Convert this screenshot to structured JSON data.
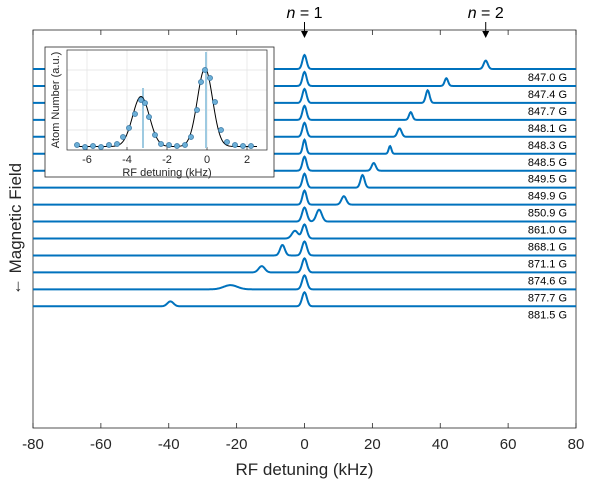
{
  "chart_data": {
    "type": "line",
    "xlabel": "RF detuning (kHz)",
    "ylabel": "← Magnetic Field",
    "xlim": [
      -80,
      80
    ],
    "xticks": [
      -80,
      -60,
      -40,
      -20,
      0,
      20,
      40,
      60,
      80
    ],
    "xtick_labels": [
      "-80",
      "-60",
      "-40",
      "-20",
      "0",
      "20",
      "40",
      "60",
      "80"
    ],
    "grid": false,
    "line_color": "#0072BD",
    "series": [
      {
        "name": "847.0 G",
        "peaks": [
          {
            "x": 0,
            "h": 1.0,
            "w": 0.6
          },
          {
            "x": 53.4,
            "h": 0.6,
            "w": 0.6
          }
        ]
      },
      {
        "name": "847.4 G",
        "peaks": [
          {
            "x": 0,
            "h": 1.0,
            "w": 0.6
          },
          {
            "x": 41.8,
            "h": 0.55,
            "w": 0.5
          }
        ]
      },
      {
        "name": "847.7 G",
        "peaks": [
          {
            "x": 0,
            "h": 1.0,
            "w": 0.6
          },
          {
            "x": 36.3,
            "h": 0.9,
            "w": 0.55
          }
        ]
      },
      {
        "name": "848.1 G",
        "peaks": [
          {
            "x": 0,
            "h": 1.0,
            "w": 0.6
          },
          {
            "x": 31.3,
            "h": 0.55,
            "w": 0.5
          }
        ]
      },
      {
        "name": "848.3 G",
        "peaks": [
          {
            "x": 0,
            "h": 1.0,
            "w": 0.6
          },
          {
            "x": 28.0,
            "h": 0.6,
            "w": 0.6
          }
        ]
      },
      {
        "name": "848.5 G",
        "peaks": [
          {
            "x": 0,
            "h": 1.0,
            "w": 0.5
          },
          {
            "x": 25.2,
            "h": 0.55,
            "w": 0.4
          }
        ]
      },
      {
        "name": "849.5 G",
        "peaks": [
          {
            "x": 0,
            "h": 1.0,
            "w": 0.6
          },
          {
            "x": 20.4,
            "h": 0.55,
            "w": 0.6
          }
        ]
      },
      {
        "name": "849.9 G",
        "peaks": [
          {
            "x": 0,
            "h": 1.0,
            "w": 0.6
          },
          {
            "x": 17.1,
            "h": 0.9,
            "w": 0.6
          }
        ]
      },
      {
        "name": "850.9 G",
        "peaks": [
          {
            "x": 0,
            "h": 1.0,
            "w": 0.6
          },
          {
            "x": 11.6,
            "h": 0.6,
            "w": 0.7
          }
        ]
      },
      {
        "name": "861.0 G",
        "peaks": [
          {
            "x": 0,
            "h": 1.0,
            "w": 0.7
          },
          {
            "x": 4.3,
            "h": 0.85,
            "w": 0.8
          }
        ]
      },
      {
        "name": "868.1 G",
        "peaks": [
          {
            "x": 0,
            "h": 1.0,
            "w": 0.7
          },
          {
            "x": -2.8,
            "h": 0.55,
            "w": 0.9
          }
        ]
      },
      {
        "name": "871.1 G",
        "peaks": [
          {
            "x": 0,
            "h": 1.0,
            "w": 0.7
          },
          {
            "x": -6.5,
            "h": 0.75,
            "w": 0.7
          }
        ]
      },
      {
        "name": "874.6 G",
        "peaks": [
          {
            "x": 0,
            "h": 1.0,
            "w": 0.7
          },
          {
            "x": -12.6,
            "h": 0.45,
            "w": 0.9
          }
        ]
      },
      {
        "name": "877.7 G",
        "peaks": [
          {
            "x": 0,
            "h": 1.0,
            "w": 0.7
          },
          {
            "x": -21.8,
            "h": 0.3,
            "w": 2.0
          }
        ]
      },
      {
        "name": "881.5 G",
        "peaks": [
          {
            "x": 0,
            "h": 1.0,
            "w": 0.7
          },
          {
            "x": -39.5,
            "h": 0.35,
            "w": 0.9
          }
        ]
      }
    ],
    "annotations": [
      {
        "label": "n = 1",
        "italic_part": "n",
        "rest": " = 1",
        "x": 0
      },
      {
        "label": "n = 2",
        "italic_part": "n",
        "rest": " = 2",
        "x": 53.4
      }
    ],
    "inset": {
      "type": "scatter",
      "xlabel": "RF detuning (kHz)",
      "ylabel": "Atom Number (a.u.)",
      "xlim": [
        -7,
        3
      ],
      "xticks": [
        -6,
        -4,
        -2,
        0,
        2
      ],
      "xtick_labels": [
        "-6",
        "-4",
        "-2",
        "0",
        "2"
      ],
      "grid": true,
      "marker_color": "#6BAED6",
      "line_color": "#000000",
      "points": [
        {
          "x": -6.5,
          "y": 0.05
        },
        {
          "x": -6.1,
          "y": 0.03
        },
        {
          "x": -5.7,
          "y": 0.04
        },
        {
          "x": -5.3,
          "y": 0.03
        },
        {
          "x": -4.9,
          "y": 0.05
        },
        {
          "x": -4.5,
          "y": 0.06
        },
        {
          "x": -4.2,
          "y": 0.13
        },
        {
          "x": -3.9,
          "y": 0.22
        },
        {
          "x": -3.6,
          "y": 0.36
        },
        {
          "x": -3.3,
          "y": 0.5
        },
        {
          "x": -3.1,
          "y": 0.47
        },
        {
          "x": -2.9,
          "y": 0.33
        },
        {
          "x": -2.6,
          "y": 0.15
        },
        {
          "x": -2.3,
          "y": 0.06
        },
        {
          "x": -1.9,
          "y": 0.05
        },
        {
          "x": -1.5,
          "y": 0.04
        },
        {
          "x": -1.1,
          "y": 0.05
        },
        {
          "x": -0.8,
          "y": 0.13
        },
        {
          "x": -0.5,
          "y": 0.4
        },
        {
          "x": -0.3,
          "y": 0.68
        },
        {
          "x": -0.1,
          "y": 0.8
        },
        {
          "x": 0.15,
          "y": 0.72
        },
        {
          "x": 0.4,
          "y": 0.48
        },
        {
          "x": 0.7,
          "y": 0.2
        },
        {
          "x": 1.0,
          "y": 0.08
        },
        {
          "x": 1.4,
          "y": 0.05
        },
        {
          "x": 1.8,
          "y": 0.04
        },
        {
          "x": 2.2,
          "y": 0.04
        }
      ],
      "fit": [
        {
          "x0": -3.3,
          "h": 0.5,
          "w": 0.42
        },
        {
          "x0": -0.1,
          "h": 0.78,
          "w": 0.38
        }
      ],
      "spikes": [
        {
          "x": -3.2,
          "h": 0.62
        },
        {
          "x": -0.05,
          "h": 0.98
        }
      ]
    }
  }
}
